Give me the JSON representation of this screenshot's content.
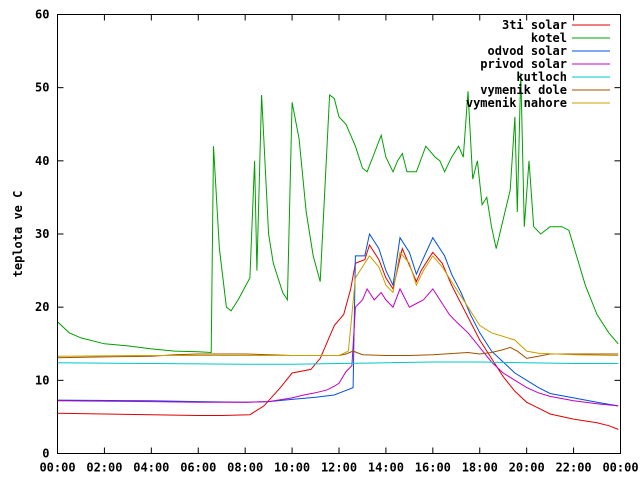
{
  "chart_data": {
    "type": "line",
    "title": "",
    "xlabel": "",
    "ylabel": "teplota ve C",
    "xlim": [
      0,
      24
    ],
    "ylim": [
      0,
      60
    ],
    "grid": false,
    "legend_position": "top-right",
    "x_ticks": [
      "00:00",
      "02:00",
      "04:00",
      "06:00",
      "08:00",
      "10:00",
      "12:00",
      "14:00",
      "16:00",
      "18:00",
      "20:00",
      "22:00",
      "00:00"
    ],
    "y_ticks": [
      "0",
      "10",
      "20",
      "30",
      "40",
      "50",
      "60"
    ],
    "series": [
      {
        "name": "3ti solar",
        "color": "#e00000",
        "points": [
          [
            0,
            5.5
          ],
          [
            2,
            5.4
          ],
          [
            4,
            5.3
          ],
          [
            6,
            5.2
          ],
          [
            7,
            5.2
          ],
          [
            8.2,
            5.3
          ],
          [
            8.8,
            6.5
          ],
          [
            9.5,
            9
          ],
          [
            10,
            11
          ],
          [
            10.8,
            11.5
          ],
          [
            11.2,
            13
          ],
          [
            11.8,
            17.5
          ],
          [
            12.2,
            19
          ],
          [
            12.5,
            22.5
          ],
          [
            12.7,
            26
          ],
          [
            13.1,
            26.5
          ],
          [
            13.3,
            28.5
          ],
          [
            13.7,
            26.5
          ],
          [
            14,
            24
          ],
          [
            14.3,
            22.5
          ],
          [
            14.7,
            28
          ],
          [
            15.1,
            25
          ],
          [
            15.3,
            23.5
          ],
          [
            15.5,
            25
          ],
          [
            16,
            27.5
          ],
          [
            16.4,
            26
          ],
          [
            16.8,
            23
          ],
          [
            17.2,
            20.5
          ],
          [
            17.6,
            18
          ],
          [
            18,
            15.5
          ],
          [
            18.5,
            13
          ],
          [
            19,
            10.5
          ],
          [
            19.5,
            8.5
          ],
          [
            20,
            7
          ],
          [
            20.5,
            6.2
          ],
          [
            21,
            5.4
          ],
          [
            22,
            4.7
          ],
          [
            23,
            4.2
          ],
          [
            23.5,
            3.8
          ],
          [
            23.9,
            3.3
          ]
        ]
      },
      {
        "name": "kotel",
        "color": "#00a000",
        "points": [
          [
            0,
            18
          ],
          [
            0.5,
            16.5
          ],
          [
            1,
            15.8
          ],
          [
            2,
            15
          ],
          [
            3,
            14.7
          ],
          [
            4,
            14.3
          ],
          [
            5,
            14
          ],
          [
            6,
            13.9
          ],
          [
            6.55,
            13.8
          ],
          [
            6.65,
            42
          ],
          [
            6.9,
            28
          ],
          [
            7.2,
            20
          ],
          [
            7.4,
            19.5
          ],
          [
            7.7,
            21
          ],
          [
            8.2,
            24
          ],
          [
            8.4,
            40
          ],
          [
            8.5,
            25
          ],
          [
            8.7,
            49
          ],
          [
            9,
            30
          ],
          [
            9.2,
            26
          ],
          [
            9.4,
            24
          ],
          [
            9.6,
            22
          ],
          [
            9.8,
            21
          ],
          [
            10,
            48
          ],
          [
            10.3,
            43
          ],
          [
            10.6,
            33
          ],
          [
            10.9,
            27
          ],
          [
            11.2,
            23.5
          ],
          [
            11.6,
            49
          ],
          [
            11.8,
            48.5
          ],
          [
            12,
            46
          ],
          [
            12.3,
            45
          ],
          [
            12.7,
            42
          ],
          [
            13,
            39
          ],
          [
            13.2,
            38.5
          ],
          [
            13.5,
            41
          ],
          [
            13.8,
            43.5
          ],
          [
            14,
            40.5
          ],
          [
            14.3,
            38.5
          ],
          [
            14.5,
            40
          ],
          [
            14.7,
            41
          ],
          [
            14.9,
            38.5
          ],
          [
            15.3,
            38.5
          ],
          [
            15.7,
            42
          ],
          [
            16.1,
            40.5
          ],
          [
            16.3,
            40
          ],
          [
            16.5,
            38.5
          ],
          [
            16.8,
            40.5
          ],
          [
            17.1,
            42
          ],
          [
            17.3,
            40.5
          ],
          [
            17.5,
            49.5
          ],
          [
            17.7,
            37.5
          ],
          [
            17.9,
            40
          ],
          [
            18.1,
            34
          ],
          [
            18.3,
            35
          ],
          [
            18.5,
            31
          ],
          [
            18.7,
            28
          ],
          [
            19,
            32
          ],
          [
            19.3,
            36
          ],
          [
            19.5,
            46
          ],
          [
            19.6,
            33
          ],
          [
            19.75,
            52
          ],
          [
            19.9,
            31
          ],
          [
            20.1,
            40
          ],
          [
            20.3,
            31
          ],
          [
            20.6,
            30
          ],
          [
            21,
            31
          ],
          [
            21.5,
            31
          ],
          [
            21.8,
            30.5
          ],
          [
            22.5,
            23
          ],
          [
            23,
            19
          ],
          [
            23.5,
            16.5
          ],
          [
            23.9,
            15
          ]
        ]
      },
      {
        "name": "odvod solar",
        "color": "#0050e0",
        "points": [
          [
            0,
            7.3
          ],
          [
            4,
            7.2
          ],
          [
            6,
            7.1
          ],
          [
            8,
            7
          ],
          [
            9,
            7.1
          ],
          [
            10,
            7.4
          ],
          [
            11,
            7.7
          ],
          [
            11.8,
            8
          ],
          [
            12.2,
            8.5
          ],
          [
            12.6,
            9
          ],
          [
            12.7,
            27
          ],
          [
            13.1,
            27
          ],
          [
            13.3,
            30
          ],
          [
            13.7,
            28
          ],
          [
            14,
            25
          ],
          [
            14.3,
            23
          ],
          [
            14.6,
            29.5
          ],
          [
            15,
            27.5
          ],
          [
            15.3,
            24.5
          ],
          [
            15.5,
            26
          ],
          [
            16,
            29.5
          ],
          [
            16.5,
            27
          ],
          [
            16.8,
            24.5
          ],
          [
            17.2,
            22
          ],
          [
            17.6,
            19
          ],
          [
            18,
            16.5
          ],
          [
            18.5,
            14
          ],
          [
            19,
            12.5
          ],
          [
            19.5,
            11
          ],
          [
            20,
            10
          ],
          [
            20.5,
            9
          ],
          [
            21,
            8.2
          ],
          [
            22,
            7.6
          ],
          [
            23,
            7
          ],
          [
            23.9,
            6.5
          ]
        ]
      },
      {
        "name": "privod solar",
        "color": "#c000c0",
        "points": [
          [
            0,
            7.2
          ],
          [
            4,
            7.1
          ],
          [
            6,
            7
          ],
          [
            8,
            7
          ],
          [
            9,
            7.1
          ],
          [
            10,
            7.6
          ],
          [
            10.5,
            8
          ],
          [
            11,
            8.3
          ],
          [
            11.5,
            8.7
          ],
          [
            11.8,
            9.2
          ],
          [
            12,
            9.6
          ],
          [
            12.3,
            11.2
          ],
          [
            12.55,
            12
          ],
          [
            12.7,
            20
          ],
          [
            13,
            21
          ],
          [
            13.2,
            22.5
          ],
          [
            13.5,
            21
          ],
          [
            13.8,
            22
          ],
          [
            14,
            21
          ],
          [
            14.3,
            20
          ],
          [
            14.6,
            22.5
          ],
          [
            15,
            20
          ],
          [
            15.3,
            20.5
          ],
          [
            15.6,
            21
          ],
          [
            16,
            22.5
          ],
          [
            16.3,
            21
          ],
          [
            16.7,
            19
          ],
          [
            17,
            18
          ],
          [
            17.5,
            16.5
          ],
          [
            18,
            14.5
          ],
          [
            18.5,
            12.5
          ],
          [
            19,
            11
          ],
          [
            19.5,
            10
          ],
          [
            20,
            9
          ],
          [
            20.5,
            8.3
          ],
          [
            21,
            7.8
          ],
          [
            22,
            7.2
          ],
          [
            23,
            6.8
          ],
          [
            23.9,
            6.5
          ]
        ]
      },
      {
        "name": "kutloch",
        "color": "#00c8c8",
        "points": [
          [
            0,
            12.4
          ],
          [
            4,
            12.3
          ],
          [
            8,
            12.2
          ],
          [
            10,
            12.2
          ],
          [
            12,
            12.3
          ],
          [
            14,
            12.4
          ],
          [
            16,
            12.5
          ],
          [
            18,
            12.5
          ],
          [
            20,
            12.4
          ],
          [
            22,
            12.3
          ],
          [
            23.9,
            12.3
          ]
        ]
      },
      {
        "name": "vymenik dole",
        "color": "#a05000",
        "points": [
          [
            0,
            13.1
          ],
          [
            2,
            13.2
          ],
          [
            4,
            13.3
          ],
          [
            5,
            13.5
          ],
          [
            6,
            13.6
          ],
          [
            7,
            13.6
          ],
          [
            8,
            13.6
          ],
          [
            9,
            13.5
          ],
          [
            10,
            13.4
          ],
          [
            11,
            13.4
          ],
          [
            12,
            13.4
          ],
          [
            12.3,
            13.6
          ],
          [
            12.6,
            14
          ],
          [
            13,
            13.5
          ],
          [
            14,
            13.4
          ],
          [
            15,
            13.4
          ],
          [
            16,
            13.5
          ],
          [
            17,
            13.7
          ],
          [
            17.5,
            13.8
          ],
          [
            18,
            13.6
          ],
          [
            18.5,
            13.8
          ],
          [
            19,
            14.2
          ],
          [
            19.3,
            14.5
          ],
          [
            19.6,
            14
          ],
          [
            20,
            13
          ],
          [
            20.5,
            13.3
          ],
          [
            21,
            13.6
          ],
          [
            22,
            13.6
          ],
          [
            23,
            13.6
          ],
          [
            23.9,
            13.6
          ]
        ]
      },
      {
        "name": "vymenik nahore",
        "color": "#c8a000",
        "points": [
          [
            0,
            13.3
          ],
          [
            4,
            13.4
          ],
          [
            8,
            13.4
          ],
          [
            10,
            13.4
          ],
          [
            12,
            13.4
          ],
          [
            12.4,
            14
          ],
          [
            12.7,
            24
          ],
          [
            13,
            25.5
          ],
          [
            13.3,
            27
          ],
          [
            13.7,
            25.5
          ],
          [
            14,
            23
          ],
          [
            14.3,
            22
          ],
          [
            14.6,
            27.5
          ],
          [
            15,
            26
          ],
          [
            15.3,
            23
          ],
          [
            15.6,
            25
          ],
          [
            16,
            27
          ],
          [
            16.4,
            25.5
          ],
          [
            16.8,
            23.5
          ],
          [
            17.2,
            21.5
          ],
          [
            17.6,
            19.5
          ],
          [
            18,
            17.5
          ],
          [
            18.5,
            16.5
          ],
          [
            19,
            16
          ],
          [
            19.5,
            15.5
          ],
          [
            20,
            14
          ],
          [
            20.5,
            13.7
          ],
          [
            22,
            13.5
          ],
          [
            23.9,
            13.4
          ]
        ]
      }
    ]
  }
}
